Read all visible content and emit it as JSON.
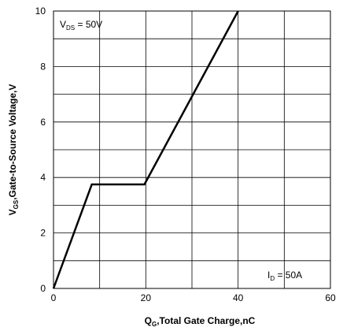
{
  "chart_data": {
    "type": "line",
    "xlabel": {
      "main": "Q",
      "sub": "G",
      "rest": ",Total Gate Charge,nC"
    },
    "ylabel": {
      "main": "V",
      "sub": "GS",
      "rest": ",Gate-to-Source Voltage,V"
    },
    "xlim": [
      0,
      60
    ],
    "ylim": [
      0,
      10
    ],
    "xticks": [
      0,
      20,
      40,
      60
    ],
    "yticks": [
      0,
      2,
      4,
      6,
      8,
      10
    ],
    "grid": {
      "x_step": 10,
      "y_step": 1
    },
    "series": [
      {
        "x": [
          0,
          8.3,
          19.7,
          40
        ],
        "y": [
          0,
          3.75,
          3.75,
          10
        ]
      }
    ],
    "annotations": [
      {
        "main": "V",
        "sub": "DS",
        "rest": " = 50V"
      },
      {
        "main": "I",
        "sub": "D",
        "rest": " = 50A"
      }
    ]
  }
}
